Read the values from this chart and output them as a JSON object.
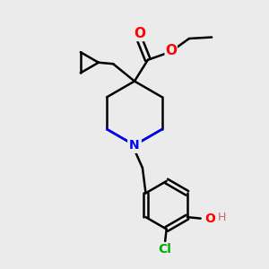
{
  "bg_color": "#ebebeb",
  "bond_color": "#000000",
  "bond_width": 1.8,
  "N_color": "#0000ff",
  "O_color": "#ff0000",
  "Cl_color": "#00aa00",
  "figsize": [
    3.0,
    3.0
  ],
  "dpi": 100,
  "xlim": [
    0,
    10
  ],
  "ylim": [
    0,
    10
  ]
}
